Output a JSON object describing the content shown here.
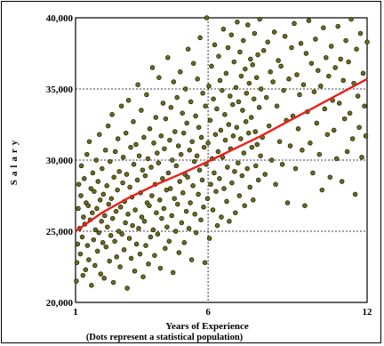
{
  "chart_data": {
    "type": "scatter",
    "title": "",
    "xlabel": "Years of Experience",
    "ylabel": "Salary",
    "note": "(Dots represent a statistical population)",
    "xlim": [
      1,
      12
    ],
    "ylim": [
      20000,
      40000
    ],
    "x_ticks": [
      {
        "value": 1,
        "label": "1"
      },
      {
        "value": 6,
        "label": "6"
      },
      {
        "value": 12,
        "label": "12"
      }
    ],
    "y_ticks": [
      {
        "value": 20000,
        "label": "20,000"
      },
      {
        "value": 25000,
        "label": "25,000"
      },
      {
        "value": 30000,
        "label": "30,000"
      },
      {
        "value": 35000,
        "label": "35,000"
      },
      {
        "value": 40000,
        "label": "40,000"
      }
    ],
    "grid": true,
    "grid_style": "dotted",
    "point_color": "#6b6b1f",
    "point_edge_color": "#1a1a00",
    "trend_color": "#e8201a",
    "trend_line": {
      "type": "logarithmic",
      "points": [
        [
          1,
          25000
        ],
        [
          2,
          26300
        ],
        [
          3,
          27350
        ],
        [
          4,
          28250
        ],
        [
          5,
          29050
        ],
        [
          6,
          29900
        ],
        [
          7,
          30800
        ],
        [
          8,
          31700
        ],
        [
          9,
          32700
        ],
        [
          10,
          33700
        ],
        [
          11,
          34700
        ],
        [
          12,
          35700
        ]
      ]
    },
    "points": [
      [
        1.03,
        21500
      ],
      [
        1.05,
        22800
      ],
      [
        1.08,
        24100
      ],
      [
        1.1,
        26600
      ],
      [
        1.12,
        28300
      ],
      [
        1.15,
        25200
      ],
      [
        1.18,
        23400
      ],
      [
        1.2,
        27500
      ],
      [
        1.22,
        29600
      ],
      [
        1.25,
        24600
      ],
      [
        1.28,
        21900
      ],
      [
        1.3,
        26000
      ],
      [
        1.33,
        28700
      ],
      [
        1.35,
        25500
      ],
      [
        1.38,
        22300
      ],
      [
        1.4,
        27000
      ],
      [
        1.43,
        30400
      ],
      [
        1.45,
        24000
      ],
      [
        1.48,
        26800
      ],
      [
        1.5,
        23000
      ],
      [
        1.52,
        31300
      ],
      [
        1.55,
        25800
      ],
      [
        1.58,
        28000
      ],
      [
        1.6,
        21200
      ],
      [
        1.63,
        26300
      ],
      [
        1.65,
        29100
      ],
      [
        1.68,
        24400
      ],
      [
        1.7,
        27800
      ],
      [
        1.73,
        22600
      ],
      [
        1.75,
        25100
      ],
      [
        1.78,
        30000
      ],
      [
        1.8,
        26600
      ],
      [
        1.83,
        23600
      ],
      [
        1.85,
        28500
      ],
      [
        1.88,
        24900
      ],
      [
        1.9,
        31800
      ],
      [
        1.93,
        27200
      ],
      [
        1.95,
        22000
      ],
      [
        1.98,
        25700
      ],
      [
        2.0,
        29400
      ],
      [
        2.03,
        24200
      ],
      [
        2.05,
        27600
      ],
      [
        2.08,
        21700
      ],
      [
        2.1,
        26100
      ],
      [
        2.13,
        30700
      ],
      [
        2.15,
        23900
      ],
      [
        2.18,
        28200
      ],
      [
        2.2,
        25300
      ],
      [
        2.23,
        32400
      ],
      [
        2.25,
        26900
      ],
      [
        2.28,
        22900
      ],
      [
        2.3,
        29900
      ],
      [
        2.33,
        24700
      ],
      [
        2.35,
        27300
      ],
      [
        2.38,
        33200
      ],
      [
        2.4,
        25900
      ],
      [
        2.43,
        21400
      ],
      [
        2.45,
        28800
      ],
      [
        2.48,
        24300
      ],
      [
        2.5,
        30600
      ],
      [
        2.53,
        26400
      ],
      [
        2.55,
        23200
      ],
      [
        2.58,
        27900
      ],
      [
        2.6,
        31500
      ],
      [
        2.63,
        25000
      ],
      [
        2.65,
        29200
      ],
      [
        2.68,
        22500
      ],
      [
        2.7,
        26700
      ],
      [
        2.73,
        33800
      ],
      [
        2.75,
        24800
      ],
      [
        2.78,
        28400
      ],
      [
        2.8,
        30200
      ],
      [
        2.83,
        23700
      ],
      [
        2.85,
        27100
      ],
      [
        2.88,
        25600
      ],
      [
        2.9,
        31900
      ],
      [
        2.93,
        29000
      ],
      [
        2.95,
        21000
      ],
      [
        2.98,
        26200
      ],
      [
        3.0,
        34200
      ],
      [
        3.03,
        24500
      ],
      [
        3.05,
        28100
      ],
      [
        3.08,
        30900
      ],
      [
        3.1,
        23100
      ],
      [
        3.13,
        27400
      ],
      [
        3.15,
        25400
      ],
      [
        3.18,
        32700
      ],
      [
        3.2,
        29700
      ],
      [
        3.23,
        22200
      ],
      [
        3.25,
        26500
      ],
      [
        3.28,
        31100
      ],
      [
        3.3,
        24100
      ],
      [
        3.33,
        28600
      ],
      [
        3.35,
        35300
      ],
      [
        3.38,
        25200
      ],
      [
        3.4,
        30300
      ],
      [
        3.43,
        23400
      ],
      [
        3.45,
        27700
      ],
      [
        3.48,
        33500
      ],
      [
        3.5,
        26000
      ],
      [
        3.53,
        29300
      ],
      [
        3.55,
        21800
      ],
      [
        3.58,
        31600
      ],
      [
        3.6,
        25700
      ],
      [
        3.63,
        28900
      ],
      [
        3.65,
        24000
      ],
      [
        3.68,
        34600
      ],
      [
        3.7,
        27000
      ],
      [
        3.73,
        30100
      ],
      [
        3.75,
        22700
      ],
      [
        3.78,
        26800
      ],
      [
        3.8,
        32200
      ],
      [
        3.83,
        24600
      ],
      [
        3.85,
        29500
      ],
      [
        3.88,
        27500
      ],
      [
        3.9,
        36500
      ],
      [
        3.93,
        25100
      ],
      [
        3.95,
        31200
      ],
      [
        3.98,
        23300
      ],
      [
        4.0,
        28300
      ],
      [
        4.03,
        33000
      ],
      [
        4.05,
        26300
      ],
      [
        4.08,
        30500
      ],
      [
        4.1,
        24800
      ],
      [
        4.13,
        29800
      ],
      [
        4.15,
        35800
      ],
      [
        4.18,
        27200
      ],
      [
        4.2,
        22400
      ],
      [
        4.23,
        31700
      ],
      [
        4.25,
        25900
      ],
      [
        4.28,
        28700
      ],
      [
        4.3,
        34000
      ],
      [
        4.33,
        26600
      ],
      [
        4.35,
        30800
      ],
      [
        4.38,
        23800
      ],
      [
        4.4,
        32900
      ],
      [
        4.43,
        27900
      ],
      [
        4.45,
        25300
      ],
      [
        4.48,
        37200
      ],
      [
        4.5,
        29100
      ],
      [
        4.53,
        24300
      ],
      [
        4.55,
        31400
      ],
      [
        4.58,
        28000
      ],
      [
        4.6,
        33700
      ],
      [
        4.63,
        26100
      ],
      [
        4.65,
        30000
      ],
      [
        4.68,
        22100
      ],
      [
        4.7,
        35500
      ],
      [
        4.73,
        27300
      ],
      [
        4.75,
        32000
      ],
      [
        4.78,
        25000
      ],
      [
        4.8,
        29600
      ],
      [
        4.83,
        34400
      ],
      [
        4.85,
        26900
      ],
      [
        4.88,
        31000
      ],
      [
        4.9,
        23500
      ],
      [
        4.93,
        28500
      ],
      [
        4.95,
        36200
      ],
      [
        4.98,
        30400
      ],
      [
        5.0,
        25600
      ],
      [
        5.03,
        33300
      ],
      [
        5.05,
        27700
      ],
      [
        5.08,
        31900
      ],
      [
        5.1,
        24200
      ],
      [
        5.13,
        29000
      ],
      [
        5.15,
        35000
      ],
      [
        5.18,
        26400
      ],
      [
        5.2,
        32600
      ],
      [
        5.23,
        28800
      ],
      [
        5.25,
        37800
      ],
      [
        5.28,
        25200
      ],
      [
        5.3,
        30700
      ],
      [
        5.33,
        27000
      ],
      [
        5.35,
        34100
      ],
      [
        5.38,
        23000
      ],
      [
        5.4,
        31300
      ],
      [
        5.43,
        28200
      ],
      [
        5.45,
        36800
      ],
      [
        5.48,
        29900
      ],
      [
        5.5,
        26200
      ],
      [
        5.53,
        33100
      ],
      [
        5.55,
        24900
      ],
      [
        5.58,
        30300
      ],
      [
        5.6,
        35700
      ],
      [
        5.63,
        27600
      ],
      [
        5.65,
        32300
      ],
      [
        5.68,
        29300
      ],
      [
        5.7,
        38600
      ],
      [
        5.73,
        25800
      ],
      [
        5.75,
        31600
      ],
      [
        5.78,
        28600
      ],
      [
        5.8,
        34700
      ],
      [
        5.83,
        26700
      ],
      [
        5.85,
        30900
      ],
      [
        5.88,
        22800
      ],
      [
        5.9,
        33800
      ],
      [
        5.93,
        29700
      ],
      [
        5.95,
        40000
      ],
      [
        5.98,
        27300
      ],
      [
        6.0,
        31200
      ],
      [
        6.03,
        35200
      ],
      [
        6.05,
        24500
      ],
      [
        6.08,
        32800
      ],
      [
        6.1,
        28300
      ],
      [
        6.13,
        36600
      ],
      [
        6.15,
        30100
      ],
      [
        6.18,
        26500
      ],
      [
        6.2,
        34300
      ],
      [
        6.23,
        29100
      ],
      [
        6.25,
        38100
      ],
      [
        6.28,
        31800
      ],
      [
        6.3,
        27800
      ],
      [
        6.33,
        33600
      ],
      [
        6.35,
        25400
      ],
      [
        6.38,
        30600
      ],
      [
        6.4,
        37300
      ],
      [
        6.43,
        28700
      ],
      [
        6.45,
        35600
      ],
      [
        6.48,
        32100
      ],
      [
        6.5,
        26000
      ],
      [
        6.53,
        34900
      ],
      [
        6.55,
        30200
      ],
      [
        6.58,
        39200
      ],
      [
        6.6,
        28000
      ],
      [
        6.63,
        33200
      ],
      [
        6.65,
        31400
      ],
      [
        6.68,
        36100
      ],
      [
        6.7,
        27100
      ],
      [
        6.73,
        29500
      ],
      [
        6.75,
        37900
      ],
      [
        6.78,
        32500
      ],
      [
        6.8,
        25700
      ],
      [
        6.83,
        34500
      ],
      [
        6.85,
        30800
      ],
      [
        6.88,
        38800
      ],
      [
        6.9,
        28400
      ],
      [
        6.93,
        33900
      ],
      [
        6.95,
        31700
      ],
      [
        6.98,
        36900
      ],
      [
        7.0,
        29200
      ],
      [
        7.03,
        26300
      ],
      [
        7.05,
        35100
      ],
      [
        7.08,
        32300
      ],
      [
        7.1,
        39700
      ],
      [
        7.13,
        29800
      ],
      [
        7.15,
        34100
      ],
      [
        7.18,
        27500
      ],
      [
        7.2,
        37600
      ],
      [
        7.23,
        31500
      ],
      [
        7.25,
        35900
      ],
      [
        7.28,
        28900
      ],
      [
        7.3,
        33500
      ],
      [
        7.33,
        38400
      ],
      [
        7.35,
        30500
      ],
      [
        7.38,
        26800
      ],
      [
        7.4,
        36400
      ],
      [
        7.43,
        32700
      ],
      [
        7.45,
        34700
      ],
      [
        7.48,
        29400
      ],
      [
        7.5,
        39500
      ],
      [
        7.53,
        31900
      ],
      [
        7.55,
        35400
      ],
      [
        7.58,
        28100
      ],
      [
        7.6,
        37100
      ],
      [
        7.63,
        33000
      ],
      [
        7.65,
        30900
      ],
      [
        7.68,
        36700
      ],
      [
        7.7,
        27200
      ],
      [
        7.73,
        34300
      ],
      [
        7.75,
        38900
      ],
      [
        7.78,
        32000
      ],
      [
        7.8,
        29600
      ],
      [
        7.83,
        35800
      ],
      [
        7.85,
        31100
      ],
      [
        7.88,
        37400
      ],
      [
        7.9,
        28600
      ],
      [
        7.93,
        33700
      ],
      [
        7.95,
        39900
      ],
      [
        7.98,
        30300
      ],
      [
        8.0,
        35000
      ],
      [
        8.05,
        31600
      ],
      [
        8.1,
        37700
      ],
      [
        8.15,
        29000
      ],
      [
        8.2,
        34400
      ],
      [
        8.25,
        38300
      ],
      [
        8.3,
        32400
      ],
      [
        8.35,
        36200
      ],
      [
        8.4,
        30000
      ],
      [
        8.45,
        35500
      ],
      [
        8.5,
        39000
      ],
      [
        8.55,
        28300
      ],
      [
        8.6,
        33800
      ],
      [
        8.65,
        37000
      ],
      [
        8.7,
        31300
      ],
      [
        8.75,
        36600
      ],
      [
        8.8,
        29700
      ],
      [
        8.85,
        34900
      ],
      [
        8.9,
        38700
      ],
      [
        8.95,
        32800
      ],
      [
        9.0,
        27000
      ],
      [
        9.05,
        35700
      ],
      [
        9.1,
        31000
      ],
      [
        9.15,
        37900
      ],
      [
        9.2,
        33100
      ],
      [
        9.25,
        39600
      ],
      [
        9.3,
        29400
      ],
      [
        9.35,
        36000
      ],
      [
        9.4,
        32200
      ],
      [
        9.45,
        34600
      ],
      [
        9.5,
        38200
      ],
      [
        9.55,
        30700
      ],
      [
        9.6,
        35300
      ],
      [
        9.65,
        26800
      ],
      [
        9.7,
        37500
      ],
      [
        9.75,
        33400
      ],
      [
        9.8,
        39800
      ],
      [
        9.85,
        31200
      ],
      [
        9.9,
        36800
      ],
      [
        9.95,
        29100
      ],
      [
        10.0,
        34800
      ],
      [
        10.05,
        38500
      ],
      [
        10.1,
        32600
      ],
      [
        10.15,
        36300
      ],
      [
        10.2,
        30400
      ],
      [
        10.25,
        35200
      ],
      [
        10.3,
        27900
      ],
      [
        10.35,
        39300
      ],
      [
        10.4,
        33600
      ],
      [
        10.45,
        37200
      ],
      [
        10.5,
        31800
      ],
      [
        10.55,
        35900
      ],
      [
        10.6,
        28800
      ],
      [
        10.65,
        38000
      ],
      [
        10.7,
        34200
      ],
      [
        10.75,
        32100
      ],
      [
        10.8,
        36500
      ],
      [
        10.85,
        30100
      ],
      [
        10.9,
        39400
      ],
      [
        10.95,
        34000
      ],
      [
        11.0,
        37100
      ],
      [
        11.05,
        28500
      ],
      [
        11.1,
        35600
      ],
      [
        11.15,
        32900
      ],
      [
        11.2,
        38400
      ],
      [
        11.25,
        30600
      ],
      [
        11.3,
        36900
      ],
      [
        11.35,
        33300
      ],
      [
        11.4,
        39900
      ],
      [
        11.45,
        31500
      ],
      [
        11.5,
        35400
      ],
      [
        11.55,
        27600
      ],
      [
        11.6,
        37800
      ],
      [
        11.65,
        34500
      ],
      [
        11.7,
        32300
      ],
      [
        11.75,
        38900
      ],
      [
        11.8,
        30200
      ],
      [
        11.85,
        36100
      ],
      [
        11.9,
        33800
      ],
      [
        11.95,
        31700
      ],
      [
        12.0,
        38300
      ]
    ]
  }
}
